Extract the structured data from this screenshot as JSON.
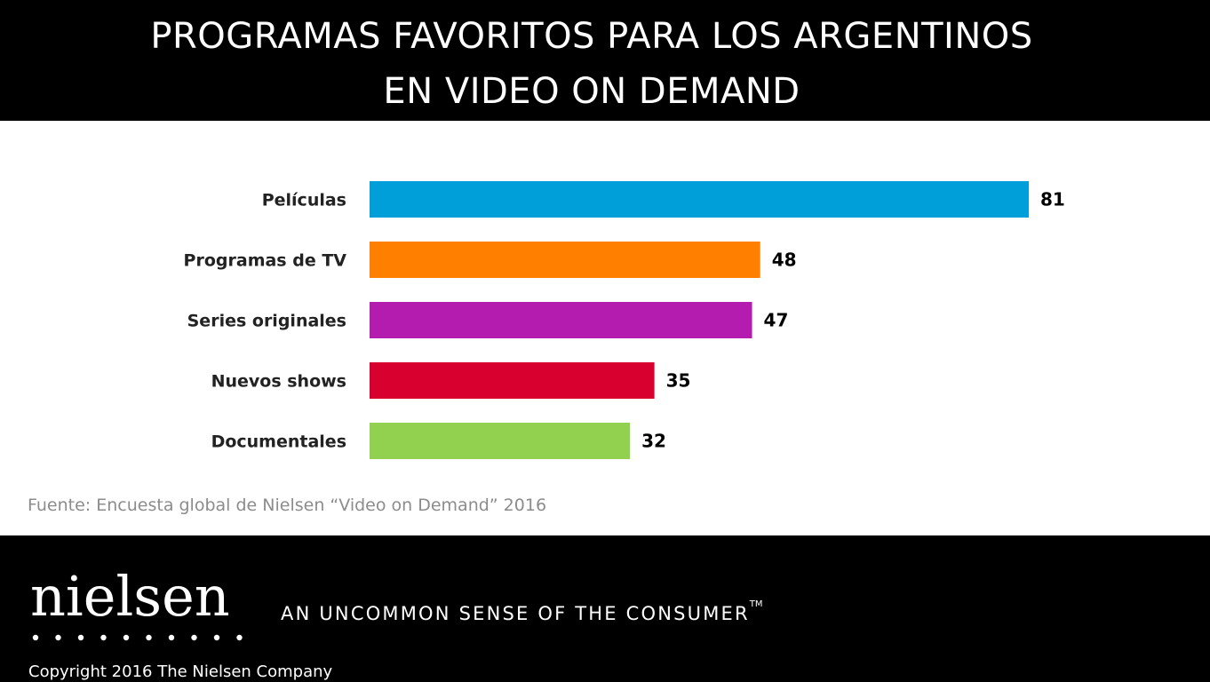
{
  "header": {
    "title_line1": "PROGRAMAS FAVORITOS PARA LOS ARGENTINOS",
    "title_line2": "EN VIDEO ON DEMAND"
  },
  "chart_data": {
    "type": "bar",
    "orientation": "horizontal",
    "categories": [
      "Películas",
      "Programas de TV",
      "Series originales",
      "Nuevos shows",
      "Documentales"
    ],
    "values": [
      81,
      48,
      47,
      35,
      32
    ],
    "colors": [
      "#009fd9",
      "#ff8000",
      "#b41cb0",
      "#d7002f",
      "#92d050"
    ],
    "xlim": [
      0,
      100
    ],
    "grid": false,
    "legend": "none"
  },
  "source": "Fuente: Encuesta global de Nielsen “Video on Demand” 2016",
  "footer": {
    "logo_text": "nielsen",
    "tagline": "AN UNCOMMON SENSE OF THE CONSUMER",
    "tagline_tm": "TM",
    "copyright": "Copyright 2016 The Nielsen Company"
  },
  "colors": {
    "background": "#ffffff",
    "band": "#000000",
    "source_text": "#8c8c8c"
  }
}
